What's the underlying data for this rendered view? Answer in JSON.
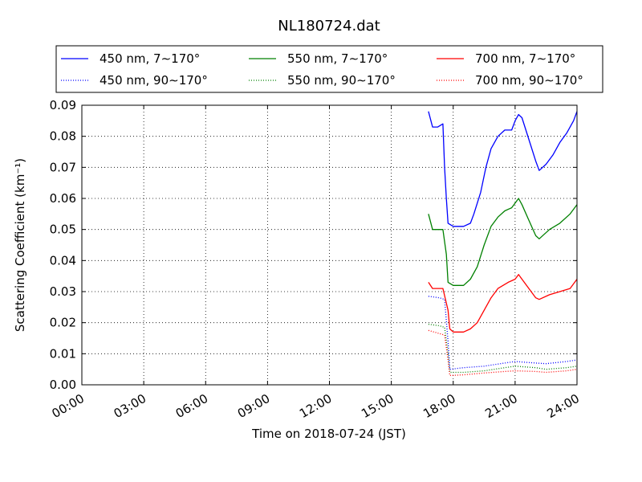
{
  "chart_data": {
    "type": "line",
    "title": "NL180724.dat",
    "xlabel": "Time on 2018-07-24 (JST)",
    "ylabel": "Scattering Coefficient (km⁻¹)",
    "x_ticks": [
      "00:00",
      "03:00",
      "06:00",
      "09:00",
      "12:00",
      "15:00",
      "18:00",
      "21:00",
      "24:00"
    ],
    "y_ticks": [
      "0.00",
      "0.01",
      "0.02",
      "0.03",
      "0.04",
      "0.05",
      "0.06",
      "0.07",
      "0.08",
      "0.09"
    ],
    "xlim": [
      "00:00",
      "24:00"
    ],
    "ylim": [
      0,
      0.09
    ],
    "grid": true,
    "legend_position": "top",
    "legend_columns": 3,
    "series": [
      {
        "name": "450 nm, 7∼170°",
        "color": "#0000ff",
        "style": "solid",
        "points": [
          [
            "16:48",
            0.088
          ],
          [
            "17:00",
            0.083
          ],
          [
            "17:15",
            0.083
          ],
          [
            "17:30",
            0.084
          ],
          [
            "17:35",
            0.07
          ],
          [
            "17:40",
            0.06
          ],
          [
            "17:45",
            0.052
          ],
          [
            "18:00",
            0.051
          ],
          [
            "18:30",
            0.051
          ],
          [
            "18:50",
            0.052
          ],
          [
            "19:00",
            0.055
          ],
          [
            "19:20",
            0.062
          ],
          [
            "19:35",
            0.07
          ],
          [
            "19:50",
            0.076
          ],
          [
            "20:10",
            0.08
          ],
          [
            "20:30",
            0.082
          ],
          [
            "20:50",
            0.082
          ],
          [
            "21:00",
            0.085
          ],
          [
            "21:10",
            0.087
          ],
          [
            "21:20",
            0.086
          ],
          [
            "21:40",
            0.079
          ],
          [
            "22:00",
            0.072
          ],
          [
            "22:10",
            0.069
          ],
          [
            "22:30",
            0.071
          ],
          [
            "22:50",
            0.074
          ],
          [
            "23:10",
            0.078
          ],
          [
            "23:30",
            0.081
          ],
          [
            "23:50",
            0.085
          ],
          [
            "24:00",
            0.088
          ]
        ]
      },
      {
        "name": "450 nm, 90∼170°",
        "color": "#0000ff",
        "style": "dotted",
        "points": [
          [
            "16:48",
            0.0285
          ],
          [
            "17:20",
            0.028
          ],
          [
            "17:35",
            0.0275
          ],
          [
            "17:45",
            0.014
          ],
          [
            "17:50",
            0.005
          ],
          [
            "18:30",
            0.0055
          ],
          [
            "19:30",
            0.006
          ],
          [
            "20:30",
            0.007
          ],
          [
            "21:00",
            0.0075
          ],
          [
            "22:00",
            0.007
          ],
          [
            "22:30",
            0.0068
          ],
          [
            "23:30",
            0.0075
          ],
          [
            "24:00",
            0.008
          ]
        ]
      },
      {
        "name": "550 nm, 7∼170°",
        "color": "#008000",
        "style": "solid",
        "points": [
          [
            "16:48",
            0.055
          ],
          [
            "17:00",
            0.05
          ],
          [
            "17:30",
            0.05
          ],
          [
            "17:40",
            0.042
          ],
          [
            "17:45",
            0.033
          ],
          [
            "18:00",
            0.032
          ],
          [
            "18:30",
            0.032
          ],
          [
            "18:50",
            0.034
          ],
          [
            "19:10",
            0.038
          ],
          [
            "19:30",
            0.045
          ],
          [
            "19:50",
            0.051
          ],
          [
            "20:10",
            0.054
          ],
          [
            "20:30",
            0.056
          ],
          [
            "20:50",
            0.057
          ],
          [
            "21:10",
            0.06
          ],
          [
            "21:20",
            0.058
          ],
          [
            "21:40",
            0.053
          ],
          [
            "22:00",
            0.048
          ],
          [
            "22:10",
            0.047
          ],
          [
            "22:40",
            0.05
          ],
          [
            "23:10",
            0.052
          ],
          [
            "23:40",
            0.055
          ],
          [
            "24:00",
            0.058
          ]
        ]
      },
      {
        "name": "550 nm, 90∼170°",
        "color": "#008000",
        "style": "dotted",
        "points": [
          [
            "16:48",
            0.0195
          ],
          [
            "17:20",
            0.019
          ],
          [
            "17:35",
            0.0185
          ],
          [
            "17:45",
            0.01
          ],
          [
            "17:50",
            0.004
          ],
          [
            "18:30",
            0.004
          ],
          [
            "19:30",
            0.0045
          ],
          [
            "20:30",
            0.0055
          ],
          [
            "21:00",
            0.006
          ],
          [
            "22:00",
            0.0055
          ],
          [
            "22:30",
            0.005
          ],
          [
            "23:30",
            0.0055
          ],
          [
            "24:00",
            0.006
          ]
        ]
      },
      {
        "name": "700 nm, 7∼170°",
        "color": "#ff0000",
        "style": "solid",
        "points": [
          [
            "16:48",
            0.033
          ],
          [
            "17:00",
            0.031
          ],
          [
            "17:30",
            0.031
          ],
          [
            "17:45",
            0.024
          ],
          [
            "17:50",
            0.018
          ],
          [
            "18:00",
            0.017
          ],
          [
            "18:30",
            0.017
          ],
          [
            "18:50",
            0.018
          ],
          [
            "19:10",
            0.02
          ],
          [
            "19:30",
            0.024
          ],
          [
            "19:50",
            0.028
          ],
          [
            "20:10",
            0.031
          ],
          [
            "20:40",
            0.033
          ],
          [
            "21:00",
            0.034
          ],
          [
            "21:10",
            0.0355
          ],
          [
            "21:20",
            0.034
          ],
          [
            "21:40",
            0.031
          ],
          [
            "22:00",
            0.028
          ],
          [
            "22:10",
            0.0275
          ],
          [
            "22:40",
            0.029
          ],
          [
            "23:10",
            0.03
          ],
          [
            "23:40",
            0.031
          ],
          [
            "24:00",
            0.034
          ]
        ]
      },
      {
        "name": "700 nm, 90∼170°",
        "color": "#ff0000",
        "style": "dotted",
        "points": [
          [
            "16:48",
            0.0175
          ],
          [
            "17:20",
            0.0165
          ],
          [
            "17:35",
            0.016
          ],
          [
            "17:45",
            0.008
          ],
          [
            "17:50",
            0.003
          ],
          [
            "18:30",
            0.0032
          ],
          [
            "19:30",
            0.0038
          ],
          [
            "20:30",
            0.0043
          ],
          [
            "21:00",
            0.0045
          ],
          [
            "22:00",
            0.0043
          ],
          [
            "22:30",
            0.004
          ],
          [
            "23:30",
            0.0045
          ],
          [
            "24:00",
            0.005
          ]
        ]
      }
    ]
  }
}
